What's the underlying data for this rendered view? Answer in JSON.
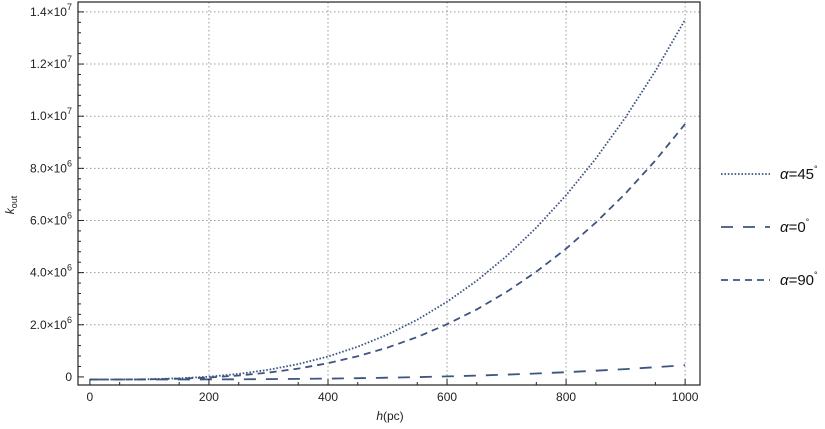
{
  "chart_data": {
    "type": "line",
    "xlabel": "h(pc)",
    "ylabel": "k_out",
    "xlim": [
      -20,
      1025
    ],
    "ylim": [
      -310000,
      14380000
    ],
    "grid": true,
    "legend_position": "right",
    "x_ticks": [
      0,
      200,
      400,
      600,
      800,
      1000
    ],
    "x_tick_labels": [
      "0",
      "200",
      "400",
      "600",
      "800",
      "1000"
    ],
    "y_ticks": [
      0,
      2000000,
      4000000,
      6000000,
      8000000,
      10000000,
      12000000,
      14000000
    ],
    "y_tick_labels": [
      {
        "mantissa": "0",
        "exp": ""
      },
      {
        "mantissa": "2.0×10",
        "exp": "6"
      },
      {
        "mantissa": "4.0×10",
        "exp": "6"
      },
      {
        "mantissa": "6.0×10",
        "exp": "6"
      },
      {
        "mantissa": "8.0×10",
        "exp": "6"
      },
      {
        "mantissa": "1.0×10",
        "exp": "7"
      },
      {
        "mantissa": "1.2×10",
        "exp": "7"
      },
      {
        "mantissa": "1.4×10",
        "exp": "7"
      }
    ],
    "x": [
      0,
      50,
      100,
      150,
      200,
      250,
      300,
      350,
      400,
      450,
      500,
      550,
      600,
      650,
      700,
      750,
      800,
      850,
      900,
      950,
      1000
    ],
    "series": [
      {
        "name": "α=45°",
        "label": "α=45",
        "style": "dotted",
        "color": "#3d5580",
        "values": [
          -100000,
          -98000,
          -86000,
          -53000,
          10000,
          116000,
          273000,
          492000,
          783000,
          1158000,
          1625000,
          2196000,
          2881000,
          3690000,
          4633000,
          5722000,
          6966000,
          8375000,
          9960000,
          11732000,
          13700000
        ]
      },
      {
        "name": "α=0°",
        "label": "α=0",
        "style": "long-dash",
        "color": "#3d5580",
        "values": [
          -100000,
          -100000,
          -99000,
          -98000,
          -96000,
          -91000,
          -85000,
          -76000,
          -65000,
          -50000,
          -31000,
          -8000,
          19000,
          51000,
          89000,
          132000,
          182000,
          238000,
          301000,
          372000,
          450000
        ]
      },
      {
        "name": "α=90°",
        "label": "α=90",
        "style": "dashed",
        "color": "#3d5580",
        "values": [
          -100000,
          -99000,
          -90000,
          -67000,
          -22000,
          53000,
          165000,
          320000,
          527000,
          793000,
          1125000,
          1530000,
          2017000,
          2591000,
          3261000,
          4034000,
          4918000,
          5918000,
          7044000,
          8302000,
          9700000
        ]
      }
    ]
  }
}
